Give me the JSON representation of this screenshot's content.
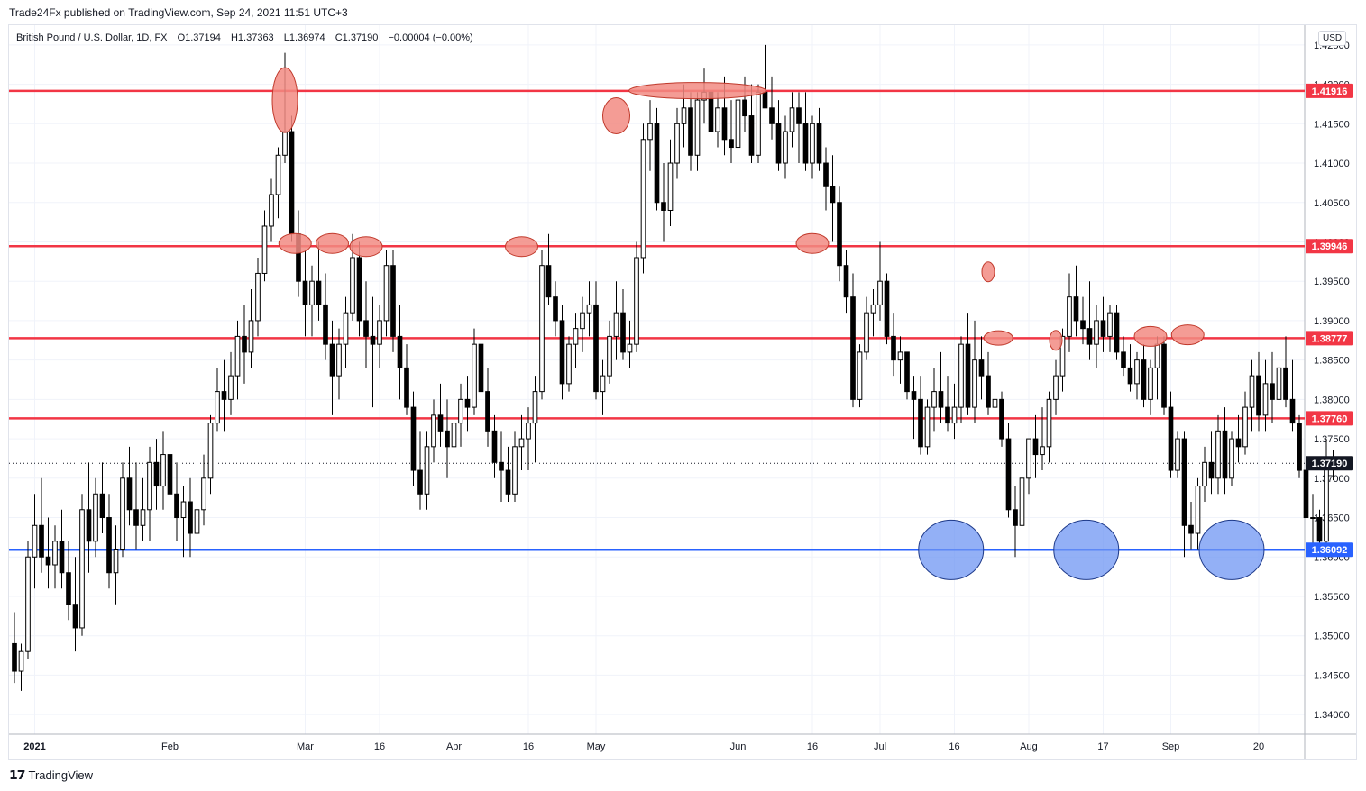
{
  "header": {
    "publisher": "Trade24Fx published on TradingView.com, Sep 24, 2021 11:51 UTC+3"
  },
  "legend": {
    "symbol": "British Pound / U.S. Dollar, 1D, FX",
    "open": "O1.37194",
    "high": "H1.37363",
    "low": "L1.36974",
    "close": "C1.37190",
    "change": "−0.00004 (−0.00%)"
  },
  "currency_button": "USD",
  "footer": {
    "brand": "TradingView",
    "logo": "tradingview-logo"
  },
  "colors": {
    "resistance": "#f23645",
    "support": "#2962ff",
    "marker_red": "#f28b82",
    "marker_blue": "#6f96f3",
    "candle_up": "#ffffff",
    "candle_down": "#000000"
  },
  "chart_data": {
    "type": "candlestick",
    "title": "",
    "xlabel": "",
    "ylabel": "",
    "ylim": [
      1.3375,
      1.4275
    ],
    "y_ticks": [
      "1.42500",
      "1.42000",
      "1.41500",
      "1.41000",
      "1.40500",
      "1.40000",
      "1.39500",
      "1.39000",
      "1.38500",
      "1.38000",
      "1.37500",
      "1.37000",
      "1.36500",
      "1.36000",
      "1.35500",
      "1.35000",
      "1.34500",
      "1.34000"
    ],
    "x_ticks": [
      {
        "label": "2021",
        "i": 3,
        "bold": true
      },
      {
        "label": "Feb",
        "i": 23
      },
      {
        "label": "Mar",
        "i": 43
      },
      {
        "label": "16",
        "i": 54
      },
      {
        "label": "Apr",
        "i": 65
      },
      {
        "label": "16",
        "i": 76
      },
      {
        "label": "May",
        "i": 86
      },
      {
        "label": "Jun",
        "i": 107
      },
      {
        "label": "16",
        "i": 118
      },
      {
        "label": "Jul",
        "i": 128
      },
      {
        "label": "16",
        "i": 139
      },
      {
        "label": "Aug",
        "i": 150
      },
      {
        "label": "17",
        "i": 161
      },
      {
        "label": "Sep",
        "i": 171
      },
      {
        "label": "20",
        "i": 184
      }
    ],
    "horizontal_levels": [
      {
        "label": "1.41916",
        "value": 1.41916,
        "kind": "resistance"
      },
      {
        "label": "1.39946",
        "value": 1.39946,
        "kind": "resistance"
      },
      {
        "label": "1.38777",
        "value": 1.38777,
        "kind": "resistance"
      },
      {
        "label": "1.37760",
        "value": 1.3776,
        "kind": "resistance"
      },
      {
        "label": "1.36092",
        "value": 1.36092,
        "kind": "support"
      }
    ],
    "last_price": {
      "label": "1.37190",
      "value": 1.3719
    },
    "x_range": [
      0,
      190
    ],
    "candles": [
      [
        1.349,
        1.353,
        1.344,
        1.3455
      ],
      [
        1.3455,
        1.349,
        1.343,
        1.348
      ],
      [
        1.348,
        1.362,
        1.347,
        1.36
      ],
      [
        1.36,
        1.368,
        1.356,
        1.364
      ],
      [
        1.364,
        1.37,
        1.358,
        1.36
      ],
      [
        1.36,
        1.365,
        1.356,
        1.359
      ],
      [
        1.359,
        1.364,
        1.356,
        1.362
      ],
      [
        1.362,
        1.366,
        1.356,
        1.358
      ],
      [
        1.358,
        1.362,
        1.352,
        1.354
      ],
      [
        1.354,
        1.36,
        1.348,
        1.351
      ],
      [
        1.351,
        1.368,
        1.35,
        1.366
      ],
      [
        1.366,
        1.372,
        1.358,
        1.362
      ],
      [
        1.362,
        1.37,
        1.36,
        1.368
      ],
      [
        1.368,
        1.372,
        1.363,
        1.365
      ],
      [
        1.365,
        1.368,
        1.356,
        1.358
      ],
      [
        1.358,
        1.364,
        1.354,
        1.361
      ],
      [
        1.361,
        1.372,
        1.36,
        1.37
      ],
      [
        1.37,
        1.374,
        1.364,
        1.366
      ],
      [
        1.366,
        1.372,
        1.361,
        1.364
      ],
      [
        1.364,
        1.37,
        1.362,
        1.366
      ],
      [
        1.366,
        1.374,
        1.362,
        1.372
      ],
      [
        1.372,
        1.375,
        1.366,
        1.369
      ],
      [
        1.369,
        1.376,
        1.366,
        1.373
      ],
      [
        1.373,
        1.376,
        1.366,
        1.368
      ],
      [
        1.368,
        1.372,
        1.362,
        1.365
      ],
      [
        1.365,
        1.369,
        1.36,
        1.367
      ],
      [
        1.367,
        1.37,
        1.36,
        1.363
      ],
      [
        1.363,
        1.368,
        1.359,
        1.366
      ],
      [
        1.366,
        1.373,
        1.364,
        1.37
      ],
      [
        1.37,
        1.378,
        1.368,
        1.377
      ],
      [
        1.377,
        1.384,
        1.376,
        1.381
      ],
      [
        1.381,
        1.385,
        1.376,
        1.38
      ],
      [
        1.38,
        1.386,
        1.378,
        1.383
      ],
      [
        1.383,
        1.39,
        1.38,
        1.388
      ],
      [
        1.388,
        1.392,
        1.382,
        1.386
      ],
      [
        1.386,
        1.394,
        1.384,
        1.39
      ],
      [
        1.39,
        1.398,
        1.388,
        1.396
      ],
      [
        1.396,
        1.404,
        1.395,
        1.402
      ],
      [
        1.402,
        1.408,
        1.4,
        1.406
      ],
      [
        1.406,
        1.412,
        1.403,
        1.411
      ],
      [
        1.411,
        1.424,
        1.41,
        1.414
      ],
      [
        1.414,
        1.416,
        1.4,
        1.401
      ],
      [
        1.401,
        1.404,
        1.393,
        1.395
      ],
      [
        1.395,
        1.399,
        1.388,
        1.392
      ],
      [
        1.392,
        1.397,
        1.388,
        1.395
      ],
      [
        1.395,
        1.4,
        1.39,
        1.392
      ],
      [
        1.392,
        1.396,
        1.385,
        1.387
      ],
      [
        1.387,
        1.39,
        1.378,
        1.383
      ],
      [
        1.383,
        1.389,
        1.38,
        1.387
      ],
      [
        1.387,
        1.393,
        1.384,
        1.391
      ],
      [
        1.391,
        1.401,
        1.39,
        1.398
      ],
      [
        1.398,
        1.4,
        1.388,
        1.39
      ],
      [
        1.39,
        1.395,
        1.384,
        1.388
      ],
      [
        1.388,
        1.393,
        1.379,
        1.387
      ],
      [
        1.387,
        1.392,
        1.384,
        1.39
      ],
      [
        1.39,
        1.399,
        1.388,
        1.397
      ],
      [
        1.397,
        1.399,
        1.386,
        1.388
      ],
      [
        1.388,
        1.392,
        1.38,
        1.384
      ],
      [
        1.384,
        1.387,
        1.378,
        1.379
      ],
      [
        1.379,
        1.381,
        1.369,
        1.371
      ],
      [
        1.371,
        1.376,
        1.366,
        1.368
      ],
      [
        1.368,
        1.376,
        1.366,
        1.374
      ],
      [
        1.374,
        1.38,
        1.372,
        1.378
      ],
      [
        1.378,
        1.382,
        1.374,
        1.376
      ],
      [
        1.376,
        1.38,
        1.37,
        1.374
      ],
      [
        1.374,
        1.378,
        1.37,
        1.377
      ],
      [
        1.377,
        1.382,
        1.374,
        1.38
      ],
      [
        1.38,
        1.383,
        1.376,
        1.379
      ],
      [
        1.379,
        1.389,
        1.378,
        1.387
      ],
      [
        1.387,
        1.39,
        1.38,
        1.381
      ],
      [
        1.381,
        1.384,
        1.374,
        1.376
      ],
      [
        1.376,
        1.378,
        1.37,
        1.372
      ],
      [
        1.372,
        1.376,
        1.367,
        1.371
      ],
      [
        1.371,
        1.374,
        1.367,
        1.368
      ],
      [
        1.368,
        1.376,
        1.367,
        1.374
      ],
      [
        1.374,
        1.378,
        1.371,
        1.375
      ],
      [
        1.375,
        1.379,
        1.371,
        1.377
      ],
      [
        1.377,
        1.383,
        1.372,
        1.381
      ],
      [
        1.381,
        1.399,
        1.38,
        1.397
      ],
      [
        1.397,
        1.401,
        1.392,
        1.393
      ],
      [
        1.393,
        1.395,
        1.388,
        1.39
      ],
      [
        1.39,
        1.392,
        1.38,
        1.382
      ],
      [
        1.382,
        1.388,
        1.381,
        1.387
      ],
      [
        1.387,
        1.391,
        1.384,
        1.389
      ],
      [
        1.389,
        1.393,
        1.386,
        1.391
      ],
      [
        1.391,
        1.395,
        1.388,
        1.392
      ],
      [
        1.392,
        1.395,
        1.38,
        1.381
      ],
      [
        1.381,
        1.385,
        1.378,
        1.383
      ],
      [
        1.383,
        1.39,
        1.382,
        1.388
      ],
      [
        1.388,
        1.395,
        1.385,
        1.391
      ],
      [
        1.391,
        1.394,
        1.385,
        1.386
      ],
      [
        1.386,
        1.39,
        1.384,
        1.387
      ],
      [
        1.387,
        1.4,
        1.386,
        1.398
      ],
      [
        1.398,
        1.415,
        1.396,
        1.413
      ],
      [
        1.413,
        1.418,
        1.409,
        1.415
      ],
      [
        1.415,
        1.417,
        1.404,
        1.405
      ],
      [
        1.405,
        1.41,
        1.4,
        1.404
      ],
      [
        1.404,
        1.413,
        1.402,
        1.41
      ],
      [
        1.41,
        1.417,
        1.408,
        1.415
      ],
      [
        1.415,
        1.42,
        1.412,
        1.417
      ],
      [
        1.417,
        1.419,
        1.409,
        1.411
      ],
      [
        1.411,
        1.419,
        1.409,
        1.418
      ],
      [
        1.418,
        1.422,
        1.415,
        1.419
      ],
      [
        1.419,
        1.421,
        1.413,
        1.414
      ],
      [
        1.414,
        1.419,
        1.412,
        1.417
      ],
      [
        1.417,
        1.421,
        1.411,
        1.413
      ],
      [
        1.413,
        1.418,
        1.41,
        1.412
      ],
      [
        1.412,
        1.419,
        1.411,
        1.418
      ],
      [
        1.418,
        1.421,
        1.414,
        1.416
      ],
      [
        1.416,
        1.42,
        1.41,
        1.411
      ],
      [
        1.411,
        1.42,
        1.41,
        1.419
      ],
      [
        1.419,
        1.425,
        1.417,
        1.417
      ],
      [
        1.417,
        1.421,
        1.413,
        1.415
      ],
      [
        1.415,
        1.418,
        1.409,
        1.41
      ],
      [
        1.41,
        1.416,
        1.408,
        1.414
      ],
      [
        1.414,
        1.419,
        1.412,
        1.417
      ],
      [
        1.417,
        1.419,
        1.41,
        1.415
      ],
      [
        1.415,
        1.419,
        1.409,
        1.41
      ],
      [
        1.41,
        1.416,
        1.408,
        1.415
      ],
      [
        1.415,
        1.417,
        1.409,
        1.41
      ],
      [
        1.41,
        1.412,
        1.404,
        1.407
      ],
      [
        1.407,
        1.411,
        1.4,
        1.405
      ],
      [
        1.405,
        1.407,
        1.395,
        1.397
      ],
      [
        1.397,
        1.399,
        1.391,
        1.393
      ],
      [
        1.393,
        1.396,
        1.379,
        1.38
      ],
      [
        1.38,
        1.387,
        1.379,
        1.386
      ],
      [
        1.386,
        1.393,
        1.385,
        1.391
      ],
      [
        1.391,
        1.394,
        1.388,
        1.392
      ],
      [
        1.392,
        1.4,
        1.39,
        1.395
      ],
      [
        1.395,
        1.396,
        1.387,
        1.388
      ],
      [
        1.388,
        1.391,
        1.383,
        1.385
      ],
      [
        1.385,
        1.388,
        1.382,
        1.386
      ],
      [
        1.386,
        1.386,
        1.38,
        1.381
      ],
      [
        1.381,
        1.383,
        1.375,
        1.38
      ],
      [
        1.38,
        1.383,
        1.373,
        1.374
      ],
      [
        1.374,
        1.38,
        1.373,
        1.379
      ],
      [
        1.379,
        1.384,
        1.376,
        1.381
      ],
      [
        1.381,
        1.386,
        1.377,
        1.379
      ],
      [
        1.379,
        1.383,
        1.376,
        1.377
      ],
      [
        1.377,
        1.382,
        1.375,
        1.379
      ],
      [
        1.379,
        1.388,
        1.377,
        1.387
      ],
      [
        1.387,
        1.391,
        1.378,
        1.379
      ],
      [
        1.379,
        1.39,
        1.377,
        1.385
      ],
      [
        1.385,
        1.388,
        1.38,
        1.383
      ],
      [
        1.383,
        1.386,
        1.378,
        1.379
      ],
      [
        1.379,
        1.386,
        1.377,
        1.38
      ],
      [
        1.38,
        1.381,
        1.374,
        1.375
      ],
      [
        1.375,
        1.377,
        1.365,
        1.366
      ],
      [
        1.366,
        1.369,
        1.36,
        1.364
      ],
      [
        1.364,
        1.372,
        1.359,
        1.37
      ],
      [
        1.37,
        1.375,
        1.368,
        1.375
      ],
      [
        1.375,
        1.378,
        1.37,
        1.373
      ],
      [
        1.373,
        1.379,
        1.371,
        1.374
      ],
      [
        1.374,
        1.381,
        1.372,
        1.38
      ],
      [
        1.38,
        1.385,
        1.378,
        1.383
      ],
      [
        1.383,
        1.389,
        1.381,
        1.388
      ],
      [
        1.388,
        1.396,
        1.386,
        1.393
      ],
      [
        1.393,
        1.397,
        1.388,
        1.39
      ],
      [
        1.39,
        1.393,
        1.387,
        1.389
      ],
      [
        1.389,
        1.395,
        1.385,
        1.387
      ],
      [
        1.387,
        1.392,
        1.384,
        1.39
      ],
      [
        1.39,
        1.393,
        1.386,
        1.388
      ],
      [
        1.388,
        1.392,
        1.386,
        1.391
      ],
      [
        1.391,
        1.392,
        1.385,
        1.386
      ],
      [
        1.386,
        1.388,
        1.383,
        1.384
      ],
      [
        1.384,
        1.387,
        1.381,
        1.382
      ],
      [
        1.382,
        1.386,
        1.38,
        1.385
      ],
      [
        1.385,
        1.387,
        1.379,
        1.38
      ],
      [
        1.38,
        1.385,
        1.378,
        1.384
      ],
      [
        1.384,
        1.388,
        1.38,
        1.387
      ],
      [
        1.387,
        1.388,
        1.378,
        1.379
      ],
      [
        1.379,
        1.381,
        1.37,
        1.371
      ],
      [
        1.371,
        1.376,
        1.37,
        1.375
      ],
      [
        1.375,
        1.376,
        1.36,
        1.364
      ],
      [
        1.364,
        1.367,
        1.361,
        1.363
      ],
      [
        1.363,
        1.37,
        1.361,
        1.369
      ],
      [
        1.369,
        1.374,
        1.367,
        1.372
      ],
      [
        1.372,
        1.376,
        1.368,
        1.37
      ],
      [
        1.37,
        1.378,
        1.368,
        1.376
      ],
      [
        1.376,
        1.379,
        1.368,
        1.37
      ],
      [
        1.37,
        1.376,
        1.369,
        1.375
      ],
      [
        1.375,
        1.378,
        1.372,
        1.374
      ],
      [
        1.374,
        1.381,
        1.373,
        1.379
      ],
      [
        1.379,
        1.385,
        1.376,
        1.383
      ],
      [
        1.383,
        1.386,
        1.376,
        1.378
      ],
      [
        1.378,
        1.385,
        1.376,
        1.382
      ],
      [
        1.382,
        1.386,
        1.377,
        1.38
      ],
      [
        1.38,
        1.385,
        1.378,
        1.384
      ],
      [
        1.384,
        1.388,
        1.379,
        1.38
      ],
      [
        1.38,
        1.385,
        1.376,
        1.377
      ],
      [
        1.377,
        1.378,
        1.37,
        1.371
      ],
      [
        1.371,
        1.373,
        1.364,
        1.365
      ],
      [
        1.365,
        1.368,
        1.361,
        1.365
      ],
      [
        1.365,
        1.366,
        1.361,
        1.362
      ],
      [
        1.362,
        1.375,
        1.361,
        1.372
      ],
      [
        1.37194,
        1.37363,
        1.36974,
        1.3719
      ]
    ],
    "annotations": {
      "red_markers": [
        {
          "i": 40,
          "y": 1.418,
          "rx": 14,
          "ry": 36
        },
        {
          "i": 41.5,
          "y": 1.3998,
          "rx": 18,
          "ry": 11
        },
        {
          "i": 47,
          "y": 1.3998,
          "rx": 18,
          "ry": 11
        },
        {
          "i": 52,
          "y": 1.3994,
          "rx": 18,
          "ry": 11
        },
        {
          "i": 75,
          "y": 1.3994,
          "rx": 18,
          "ry": 11
        },
        {
          "i": 89,
          "y": 1.416,
          "rx": 15,
          "ry": 20
        },
        {
          "i": 101,
          "y": 1.4192,
          "rx": 76,
          "ry": 9
        },
        {
          "i": 118,
          "y": 1.3998,
          "rx": 18,
          "ry": 11
        },
        {
          "i": 144,
          "y": 1.3962,
          "rx": 7,
          "ry": 11
        },
        {
          "i": 145.5,
          "y": 1.3878,
          "rx": 16,
          "ry": 8
        },
        {
          "i": 154,
          "y": 1.3875,
          "rx": 7,
          "ry": 11
        },
        {
          "i": 168,
          "y": 1.388,
          "rx": 18,
          "ry": 11
        },
        {
          "i": 173.5,
          "y": 1.3882,
          "rx": 18,
          "ry": 11
        }
      ],
      "blue_markers": [
        {
          "i": 138.5,
          "y": 1.3609,
          "rx": 36,
          "ry": 33
        },
        {
          "i": 158.5,
          "y": 1.3609,
          "rx": 36,
          "ry": 33
        },
        {
          "i": 180,
          "y": 1.3609,
          "rx": 36,
          "ry": 33
        }
      ]
    }
  }
}
